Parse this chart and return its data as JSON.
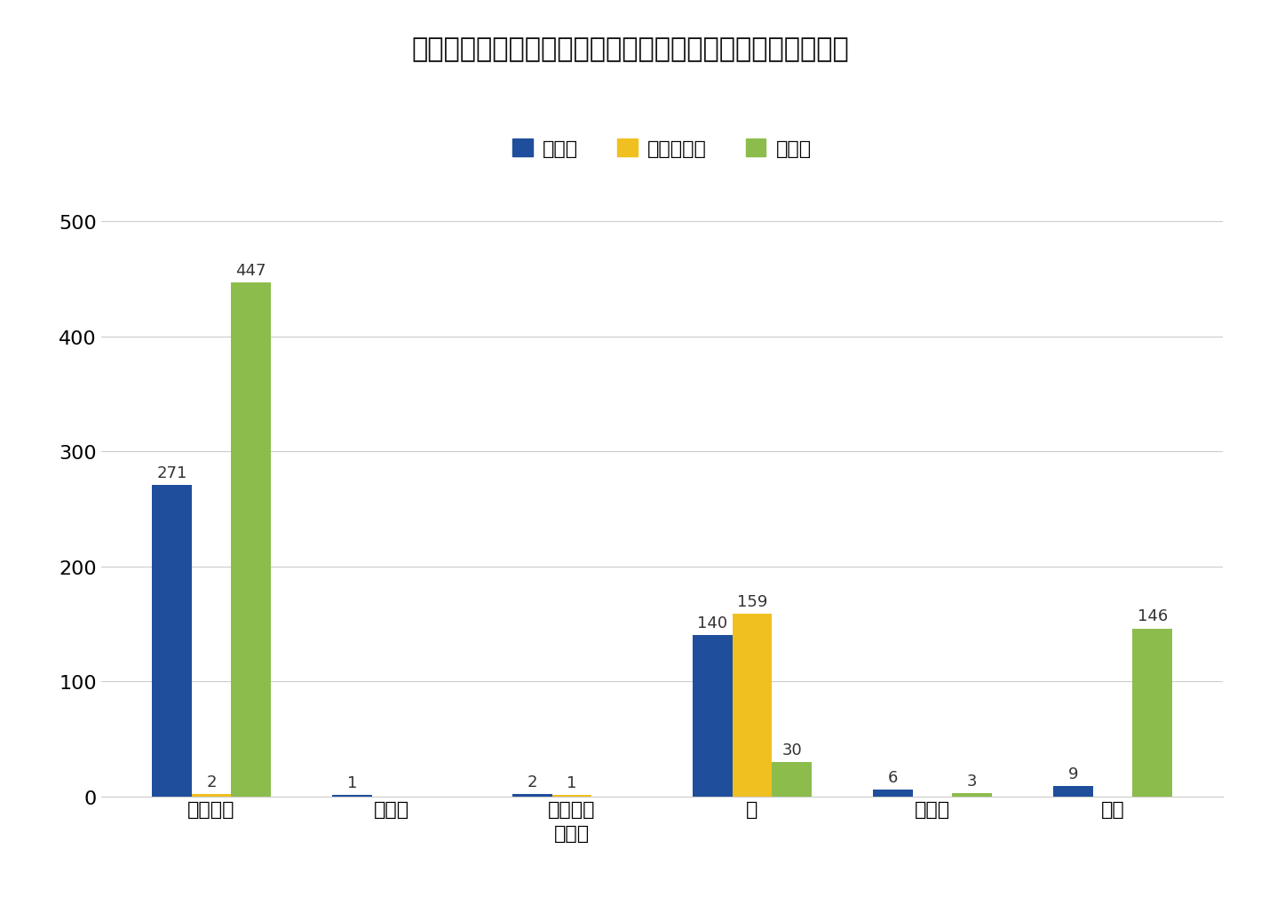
{
  "title": "共同住宅（４階建以上）における空き巣の侵入口別侵入手口",
  "categories": [
    "表出入口",
    "非常口",
    "その他の\n出入口",
    "窓",
    "その他",
    "不明"
  ],
  "legend_labels": [
    "無締り",
    "ガラス破り",
    "その他"
  ],
  "bar_colors": [
    "#1f4e9c",
    "#f0c020",
    "#8cbd4c"
  ],
  "series": {
    "無締り": [
      271,
      1,
      2,
      140,
      6,
      9
    ],
    "ガラス破り": [
      2,
      0,
      1,
      159,
      0,
      0
    ],
    "その他": [
      447,
      0,
      0,
      30,
      3,
      146
    ]
  },
  "ylim": [
    0,
    520
  ],
  "yticks": [
    0,
    100,
    200,
    300,
    400,
    500
  ],
  "bar_width": 0.22,
  "background_color": "#ffffff",
  "grid_color": "#cccccc",
  "title_fontsize": 22,
  "legend_fontsize": 16,
  "tick_fontsize": 16,
  "value_fontsize": 13
}
